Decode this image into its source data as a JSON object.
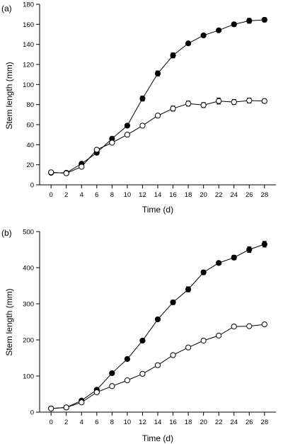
{
  "chart_data": [
    {
      "type": "line",
      "panel_label": "(a)",
      "xlabel": "Time (d)",
      "ylabel": "Stem length (mm)",
      "x": [
        0,
        2,
        4,
        6,
        8,
        10,
        12,
        14,
        16,
        18,
        20,
        22,
        24,
        26,
        28
      ],
      "x_ticks": [
        "0",
        "2",
        "4",
        "6",
        "8",
        "10",
        "12",
        "14",
        "16",
        "18",
        "20",
        "22",
        "24",
        "26",
        "28"
      ],
      "xlim": [
        -1.5,
        29.5
      ],
      "ylim": [
        0,
        180
      ],
      "y_ticks": [
        "0",
        "20",
        "40",
        "60",
        "80",
        "100",
        "120",
        "140",
        "160",
        "180"
      ],
      "series": [
        {
          "marker": "filled-circle",
          "color": "#000000",
          "values": [
            12,
            12,
            21,
            32,
            46,
            59,
            86,
            111,
            129,
            141,
            149,
            154,
            160,
            163.5,
            164.5
          ],
          "errors": [
            1,
            1,
            1.5,
            1.5,
            1.5,
            1.5,
            2.5,
            2.5,
            2.5,
            1.5,
            1.5,
            1.5,
            2,
            2.5,
            2
          ]
        },
        {
          "marker": "open-circle",
          "color": "#000000",
          "values": [
            12.5,
            11.5,
            18,
            35,
            42,
            50,
            59,
            69,
            76,
            81,
            79.5,
            83.5,
            82.5,
            84,
            83.5
          ],
          "errors": [
            1,
            1,
            1.5,
            1.5,
            1.5,
            1.5,
            1.5,
            2,
            2.5,
            2.5,
            2.5,
            3,
            2.5,
            2.5,
            2
          ]
        }
      ]
    },
    {
      "type": "line",
      "panel_label": "(b)",
      "xlabel": "Time (d)",
      "ylabel": "Stem length (mm)",
      "x": [
        0,
        2,
        4,
        6,
        8,
        10,
        12,
        14,
        16,
        18,
        20,
        22,
        24,
        26,
        28
      ],
      "x_ticks": [
        "0",
        "2",
        "4",
        "6",
        "8",
        "10",
        "12",
        "14",
        "16",
        "18",
        "20",
        "22",
        "24",
        "26",
        "28"
      ],
      "xlim": [
        -1.5,
        29.5
      ],
      "ylim": [
        0,
        500
      ],
      "y_ticks": [
        "0",
        "100",
        "200",
        "300",
        "400",
        "500"
      ],
      "series": [
        {
          "marker": "filled-circle",
          "color": "#000000",
          "values": [
            10,
            13,
            32,
            62,
            108,
            147,
            198,
            257,
            304,
            340,
            387,
            413,
            428,
            450,
            465
          ],
          "errors": [
            1.5,
            1.5,
            3,
            4,
            5,
            5,
            5,
            5,
            6,
            7,
            6,
            5,
            6,
            8,
            8
          ]
        },
        {
          "marker": "open-circle",
          "color": "#000000",
          "values": [
            10,
            13,
            27,
            55,
            72,
            88,
            106,
            130,
            158,
            179,
            198,
            212,
            237,
            238,
            243
          ],
          "errors": [
            1.5,
            1.5,
            2,
            3,
            3,
            3,
            3,
            3,
            3,
            3,
            3,
            3,
            3,
            3,
            3
          ]
        }
      ]
    }
  ]
}
